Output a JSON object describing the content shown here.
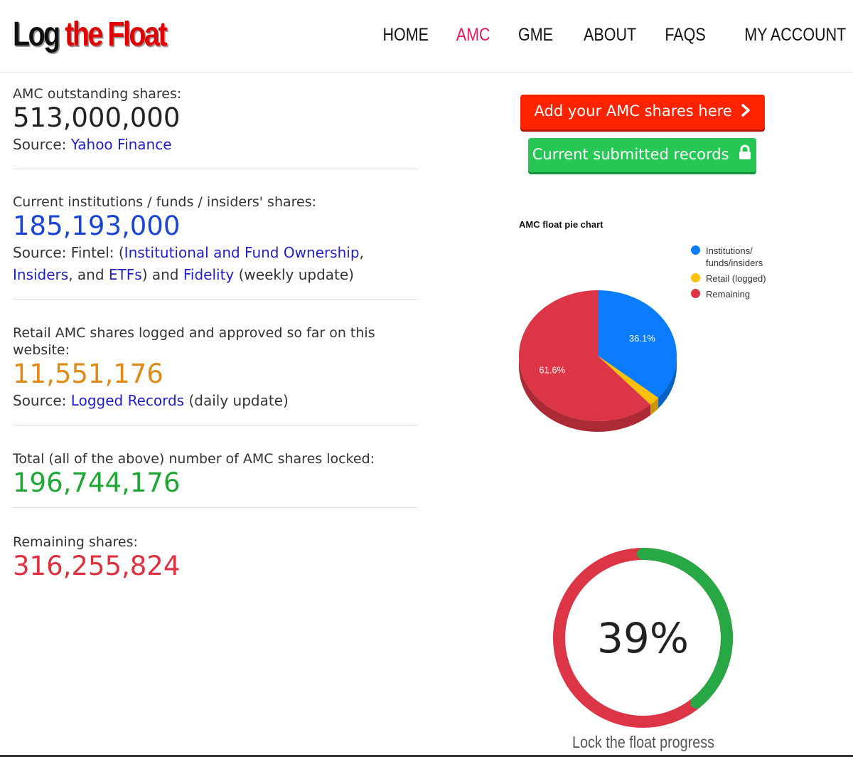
{
  "header": {
    "logo_part1": "Log",
    "logo_part2": "the Float",
    "nav": [
      {
        "label": "HOME",
        "active": false
      },
      {
        "label": "AMC",
        "active": true
      },
      {
        "label": "GME",
        "active": false
      },
      {
        "label": "ABOUT",
        "active": false
      },
      {
        "label": "FAQS",
        "active": false
      },
      {
        "label": "MY ACCOUNT",
        "active": false
      }
    ],
    "active_color": "#e8175d"
  },
  "stats": {
    "outstanding": {
      "label": "AMC outstanding shares:",
      "value": "513,000,000",
      "source_prefix": "Source: ",
      "source_link": "Yahoo Finance"
    },
    "institutions": {
      "label": "Current institutions / funds / insiders' shares:",
      "value": "185,193,000",
      "source_prefix": "Source: Fintel: (",
      "link1": "Institutional and Fund Ownership",
      "sep1": ", ",
      "link2": "Insiders",
      "sep2": ", and ",
      "link3": "ETFs",
      "sep3": ") and ",
      "link4": "Fidelity",
      "suffix": " (weekly update)"
    },
    "retail": {
      "label": "Retail AMC shares logged and approved so far on this website:",
      "value": "11,551,176",
      "source_prefix": "Source: ",
      "source_link": "Logged Records",
      "suffix": " (daily update)"
    },
    "total": {
      "label": "Total (all of the above) number of AMC shares locked:",
      "value": "196,744,176"
    },
    "remaining": {
      "label": "Remaining shares:",
      "value": "316,255,824"
    }
  },
  "buttons": {
    "add": "Add your AMC shares here",
    "add_icon": "chevron-right-icon",
    "records": "Current submitted records",
    "records_icon": "lock-icon",
    "add_color": "#fe2300",
    "records_color": "#26c755"
  },
  "chart_data": {
    "type": "pie",
    "title": "AMC float pie chart",
    "legend_position": "top-right",
    "slices": [
      {
        "label": "Institutions/ funds/insiders",
        "value": 36.1,
        "color": "#0b7bff",
        "value_label": "36.1%"
      },
      {
        "label": "Retail (logged)",
        "value": 2.3,
        "color": "#ffc107",
        "value_label": ""
      },
      {
        "label": "Remaining",
        "value": 61.6,
        "color": "#dc3545",
        "value_label": "61.6%"
      }
    ]
  },
  "progress": {
    "percent": 39,
    "label": "39%",
    "caption": "Lock the float progress",
    "locked_color": "#28a745",
    "remaining_color": "#dc3545"
  }
}
